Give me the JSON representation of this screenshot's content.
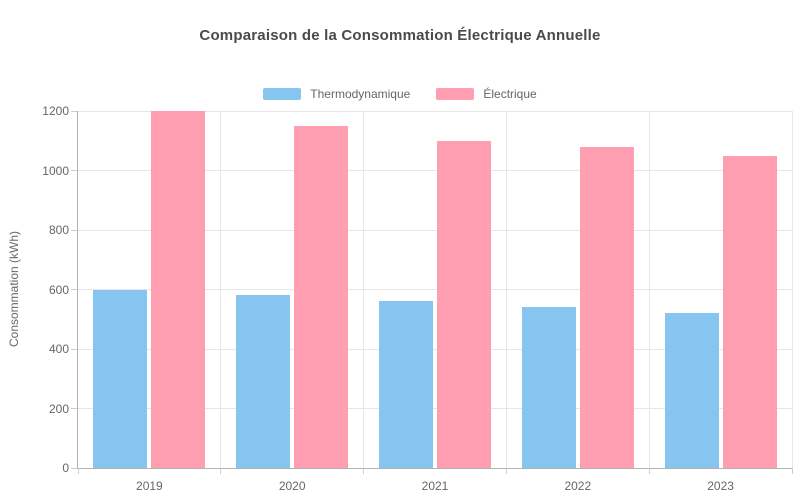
{
  "page_title": "Comparaison de la Consommation Électrique Annuelle",
  "chart_data": {
    "type": "bar",
    "title": "Comparaison de la Consommation Électrique Annuelle",
    "categories": [
      "2019",
      "2020",
      "2021",
      "2022",
      "2023"
    ],
    "series": [
      {
        "name": "Thermodynamique",
        "color": "#86C5EF",
        "values": [
          600,
          580,
          560,
          540,
          520
        ]
      },
      {
        "name": "Électrique",
        "color": "#FF9EB0",
        "values": [
          1200,
          1150,
          1100,
          1080,
          1050
        ]
      }
    ],
    "xlabel": "",
    "ylabel": "Consommation (kWh)",
    "ylim": [
      0,
      1200
    ],
    "ytick_step": 200,
    "ytick_labels": [
      "0",
      "200",
      "400",
      "600",
      "800",
      "1000",
      "1200"
    ],
    "grid": true,
    "legend_position": "top"
  },
  "colors": {
    "grid": "#e6e6e6",
    "axis": "#b3b3b3",
    "tick_mark": "#cccccc",
    "tick_text": "#666666",
    "title_text": "#4a4a4a",
    "background": "#ffffff"
  }
}
